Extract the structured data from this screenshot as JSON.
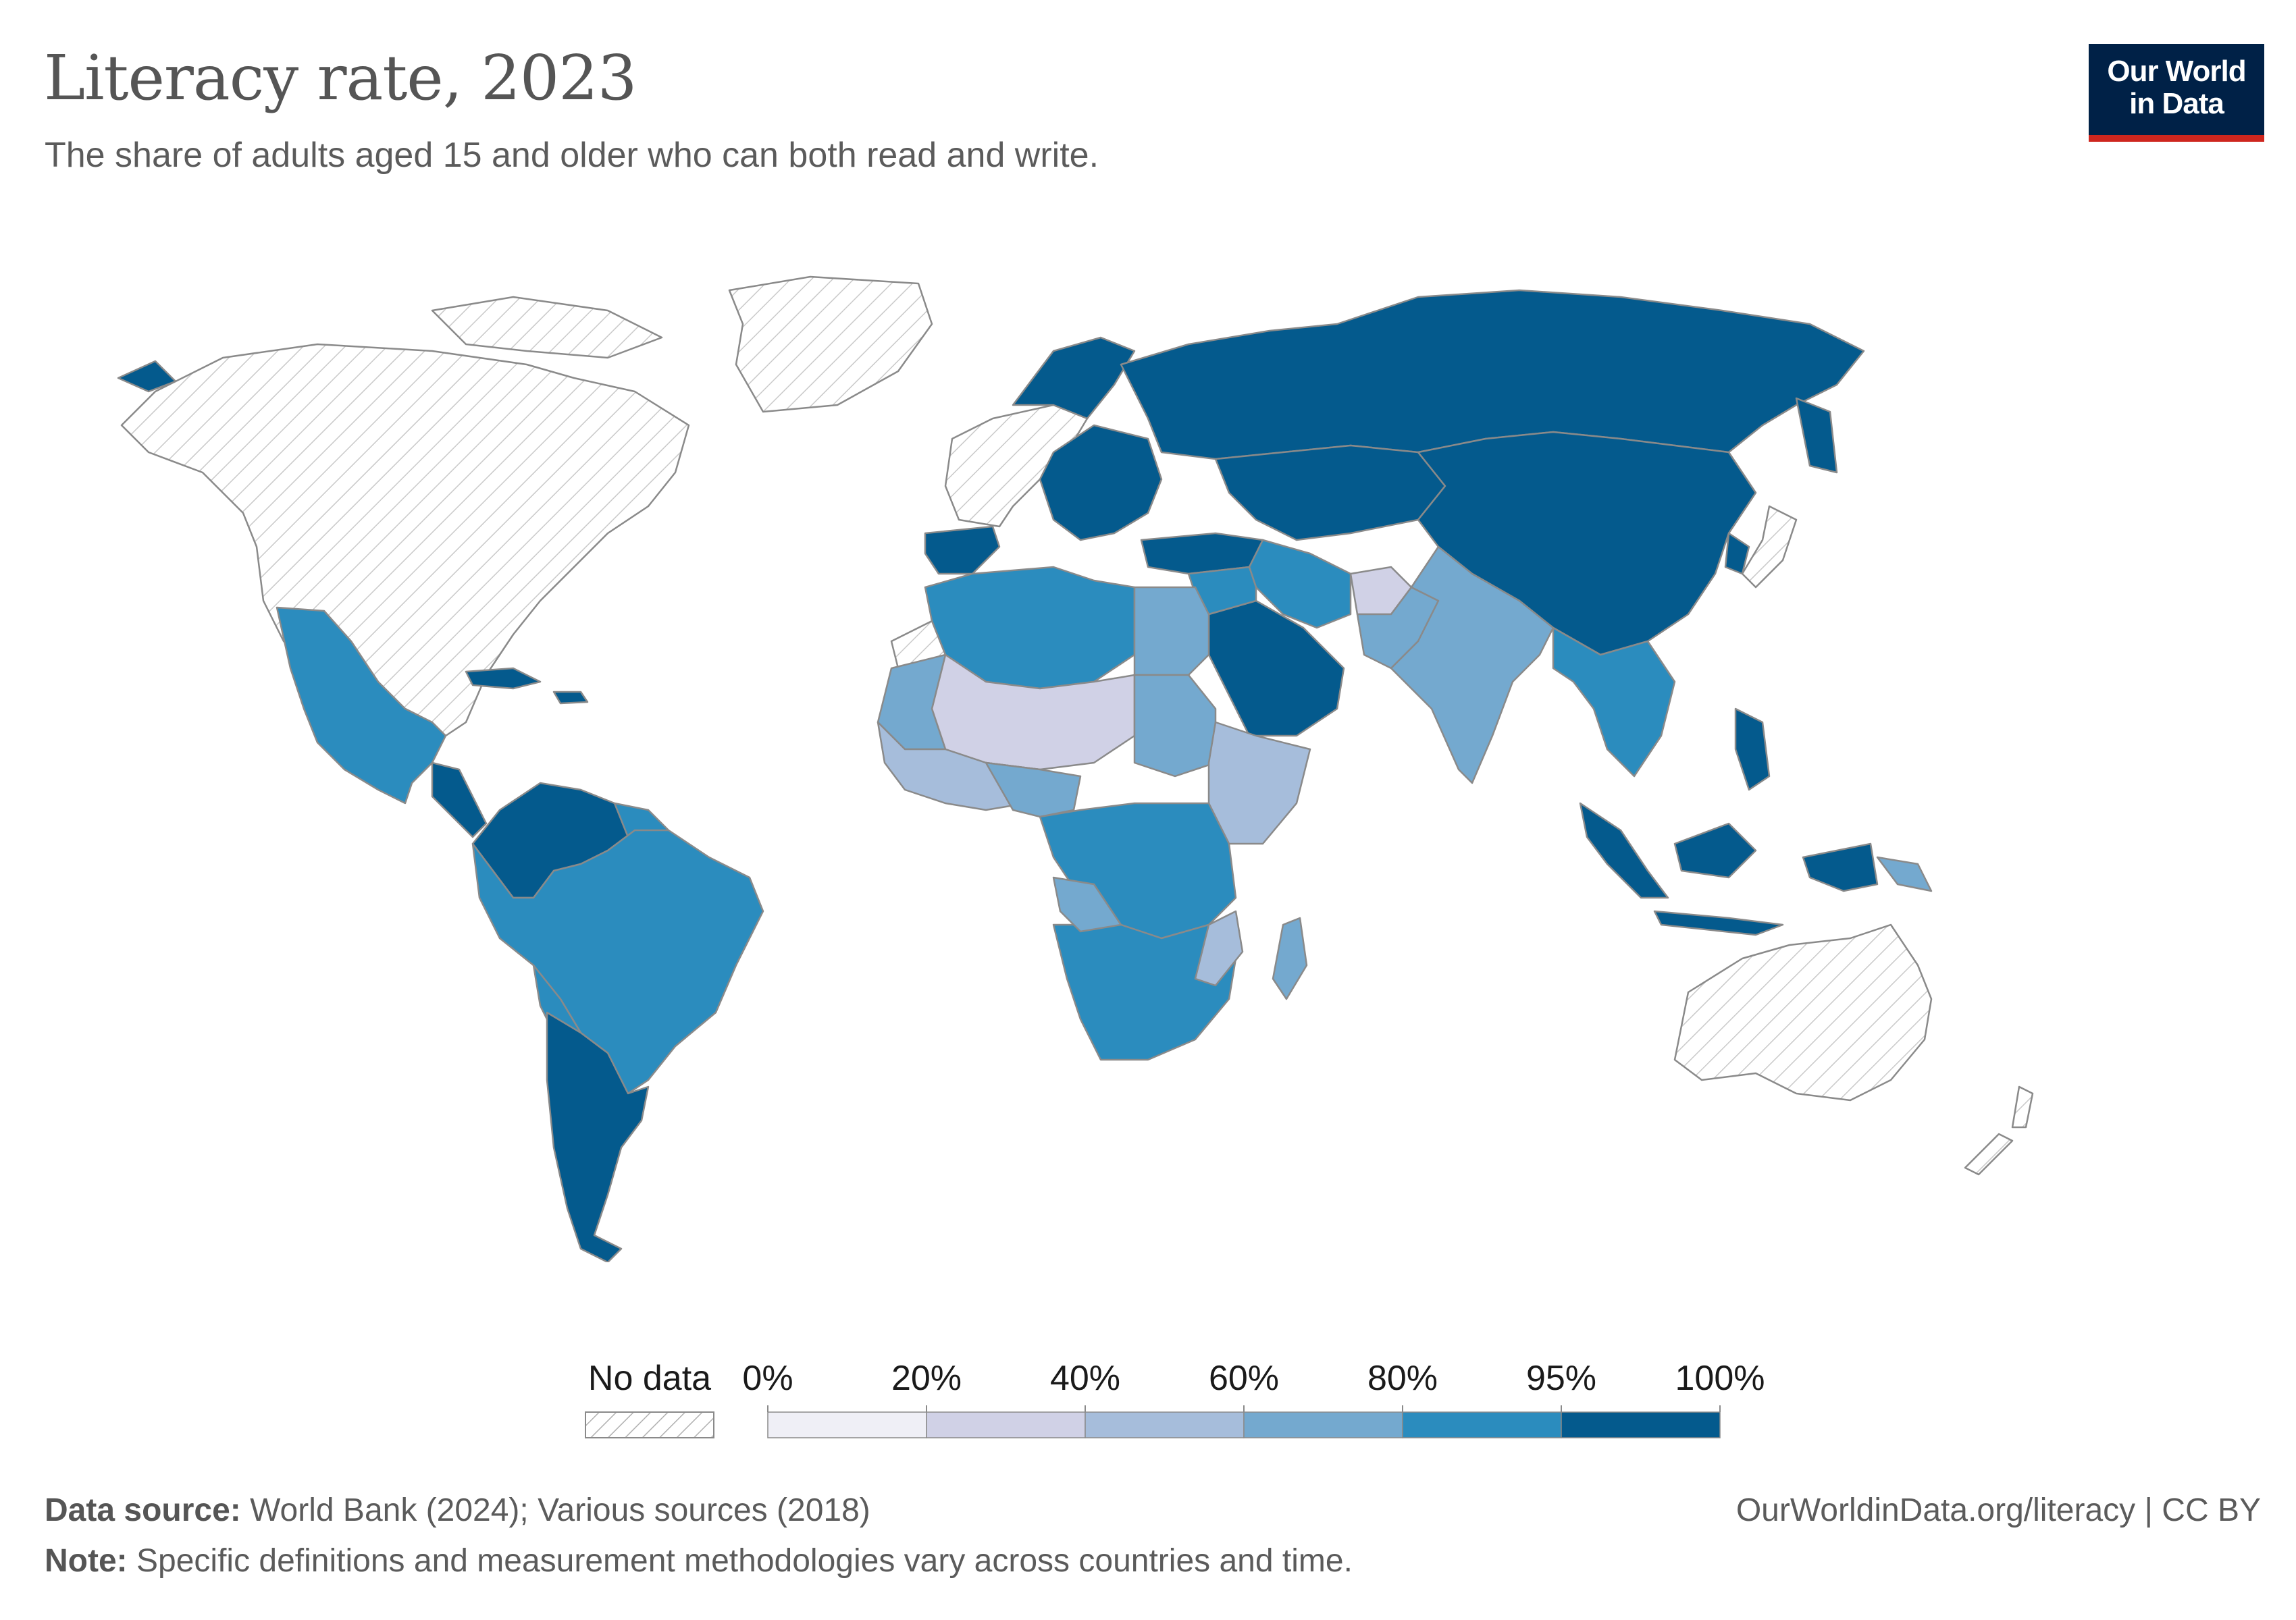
{
  "title": "Literacy rate, 2023",
  "subtitle": "The share of adults aged 15 and older who can both read and write.",
  "logo": {
    "line1": "Our World",
    "line2": "in Data",
    "bg": "#002147",
    "accent": "#ce261e"
  },
  "legend": {
    "no_data_label": "No data",
    "bins": [
      {
        "label": "0%",
        "color": "#efeff6"
      },
      {
        "label": "20%",
        "color": "#d0d1e6"
      },
      {
        "label": "40%",
        "color": "#a6bddb"
      },
      {
        "label": "60%",
        "color": "#74a9cf"
      },
      {
        "label": "80%",
        "color": "#2b8cbe"
      },
      {
        "label": "95%",
        "color": "#045a8d"
      },
      {
        "label": "100%",
        "color": ""
      }
    ]
  },
  "footer": {
    "source_label": "Data source:",
    "source_text": "World Bank (2024); Various sources (2018)",
    "note_label": "Note:",
    "note_text": "Specific definitions and measurement methodologies vary across countries and time.",
    "url": "OurWorldinData.org/literacy | CC BY"
  }
}
